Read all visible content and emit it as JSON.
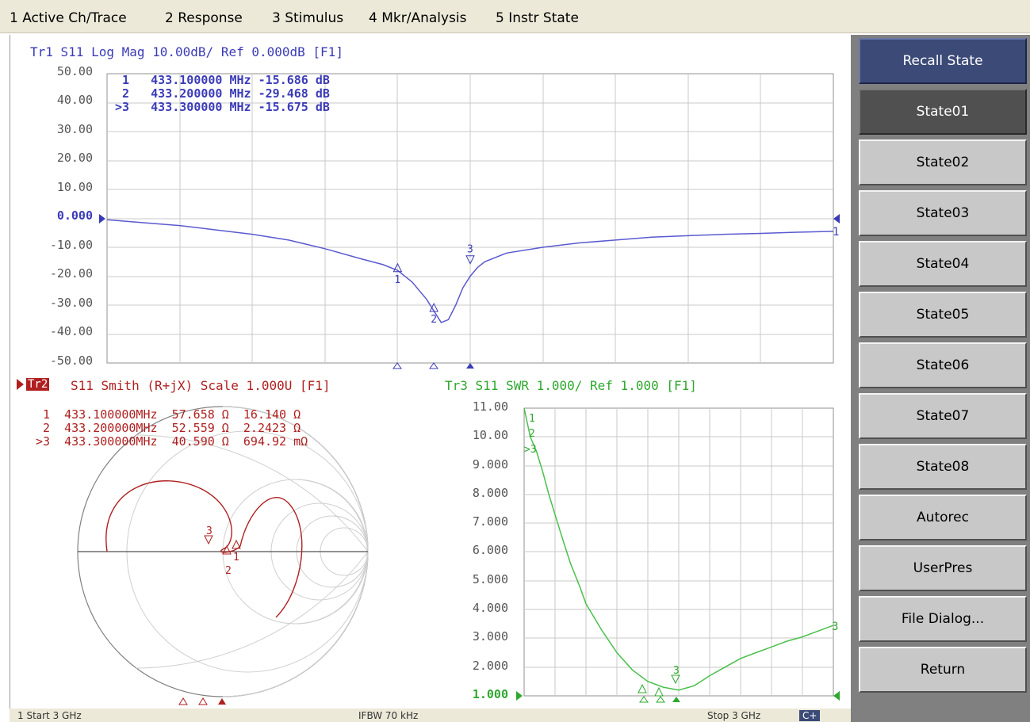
{
  "menu": [
    {
      "label": "1 Active Ch/Trace"
    },
    {
      "label": "2 Response"
    },
    {
      "label": "3 Stimulus"
    },
    {
      "label": "4 Mkr/Analysis"
    },
    {
      "label": "5 Instr State"
    }
  ],
  "softkeys": {
    "header": "Recall State",
    "items": [
      {
        "label": "State01"
      },
      {
        "label": "State02"
      },
      {
        "label": "State03"
      },
      {
        "label": "State04"
      },
      {
        "label": "State05"
      },
      {
        "label": "State06"
      },
      {
        "label": "State07"
      },
      {
        "label": "State08"
      },
      {
        "label": "Autorec"
      },
      {
        "label": "UserPres"
      },
      {
        "label": "File Dialog..."
      },
      {
        "label": "Return"
      }
    ],
    "active_index": 0
  },
  "trace1": {
    "title": "Tr1 S11 Log Mag 10.00dB/ Ref 0.000dB [F1]",
    "color": "#3b3bb8",
    "yticks": [
      "50.00",
      "40.00",
      "30.00",
      "20.00",
      "10.00",
      "0.000",
      "-10.00",
      "-20.00",
      "-30.00",
      "-40.00",
      "-50.00"
    ],
    "markers": [
      {
        "id": "1",
        "text": " 1   433.100000 MHz -15.686 dB"
      },
      {
        "id": "2",
        "text": " 2   433.200000 MHz -29.468 dB"
      },
      {
        "id": ">3",
        "text": ">3   433.300000 MHz -15.675 dB"
      }
    ],
    "end_label": "1"
  },
  "trace2": {
    "title": "S11 Smith (R+jX) Scale 1.000U [F1]",
    "badge": "Tr2",
    "color": "#b02020",
    "markers": [
      {
        "text": " 1  433.100000MHz  57.658 Ω  16.140 Ω"
      },
      {
        "text": " 2  433.200000MHz  52.559 Ω  2.2423 Ω"
      },
      {
        "text": ">3  433.300000MHz  40.590 Ω  694.92 mΩ"
      }
    ]
  },
  "trace3": {
    "title": "Tr3 S11 SWR 1.000/ Ref 1.000 [F1]",
    "color": "#2ea82e",
    "yticks": [
      "11.00",
      "10.00",
      "9.000",
      "8.000",
      "7.000",
      "6.000",
      "5.000",
      "4.000",
      "3.000",
      "2.000",
      "1.000"
    ],
    "end_label": "3"
  },
  "statusbar": {
    "start": "1  Start 3 GHz",
    "ifbw": "IFBW 70 kHz",
    "stop": "Stop 3 GHz",
    "mode": "C+"
  },
  "chart_data": [
    {
      "type": "line",
      "title": "Tr1 S11 Log Mag 10.00dB/ Ref 0.000dB [F1]",
      "ylabel": "dB",
      "ylim": [
        -50,
        50
      ],
      "x": [
        0,
        5,
        10,
        15,
        20,
        25,
        30,
        35,
        38,
        40,
        42,
        44,
        45,
        46,
        47,
        48,
        49,
        50,
        51,
        52,
        55,
        60,
        65,
        70,
        75,
        80,
        85,
        90,
        95,
        100
      ],
      "series": [
        {
          "name": "S11 Log Mag",
          "values": [
            -0.5,
            -1.5,
            -2.5,
            -4,
            -5.5,
            -7.5,
            -10.5,
            -14,
            -16,
            -18,
            -22,
            -28,
            -32,
            -36,
            -35,
            -30,
            -24,
            -20,
            -17,
            -15,
            -12,
            -10,
            -8.5,
            -7.5,
            -6.5,
            -6,
            -5.5,
            -5.2,
            -4.8,
            -4.5
          ]
        }
      ],
      "markers": [
        {
          "x": 40,
          "y": -15.686
        },
        {
          "x": 45,
          "y": -29.468
        },
        {
          "x": 50,
          "y": -15.675
        }
      ]
    },
    {
      "type": "line",
      "title": "Tr3 S11 SWR 1.000/ Ref 1.000 [F1]",
      "ylabel": "SWR",
      "ylim": [
        1,
        11
      ],
      "x": [
        0,
        2,
        4,
        6,
        8,
        10,
        12,
        15,
        18,
        20,
        25,
        30,
        35,
        40,
        45,
        50,
        55,
        60,
        65,
        70,
        75,
        80,
        85,
        90,
        95,
        100
      ],
      "series": [
        {
          "name": "S11 SWR",
          "values": [
            11,
            10,
            9.5,
            8.8,
            8,
            7.3,
            6.6,
            5.6,
            4.8,
            4.2,
            3.3,
            2.5,
            1.9,
            1.5,
            1.3,
            1.2,
            1.35,
            1.7,
            2.0,
            2.3,
            2.5,
            2.7,
            2.9,
            3.05,
            3.25,
            3.45
          ]
        }
      ]
    }
  ]
}
